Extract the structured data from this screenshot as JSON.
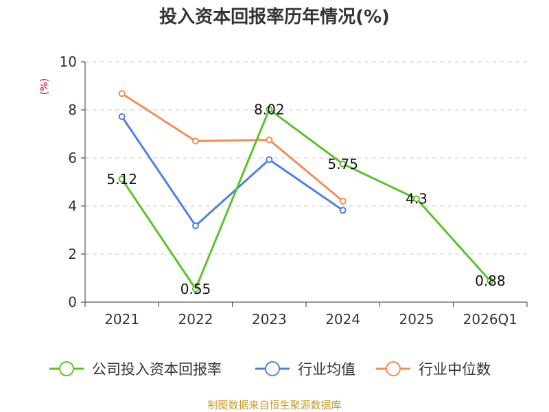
{
  "chart_data": {
    "type": "line",
    "title": "投入资本回报率历年情况(%)",
    "ylabel": "(%)",
    "xlabel": "",
    "categories": [
      "2021",
      "2022",
      "2023",
      "2024",
      "2025",
      "2026Q1"
    ],
    "ylim": [
      0,
      10
    ],
    "yticks": [
      "0",
      "2",
      "4",
      "6",
      "8",
      "10"
    ],
    "grid": true,
    "legend_position": "bottom",
    "series": [
      {
        "name": "公司投入资本回报率",
        "color": "#5cc12b",
        "values": [
          5.12,
          0.55,
          8.02,
          5.75,
          4.3,
          0.88
        ],
        "labels": [
          "5.12",
          "0.55",
          "8.02",
          "5.75",
          "4.3",
          "0.88"
        ]
      },
      {
        "name": "行业均值",
        "color": "#4f80e1",
        "values": [
          7.72,
          3.18,
          5.93,
          3.82,
          null,
          null
        ]
      },
      {
        "name": "行业中位数",
        "color": "#f68b54",
        "values": [
          8.68,
          6.7,
          6.75,
          4.2,
          null,
          null
        ]
      }
    ],
    "source": "制图数据来自恒生聚源数据库"
  }
}
